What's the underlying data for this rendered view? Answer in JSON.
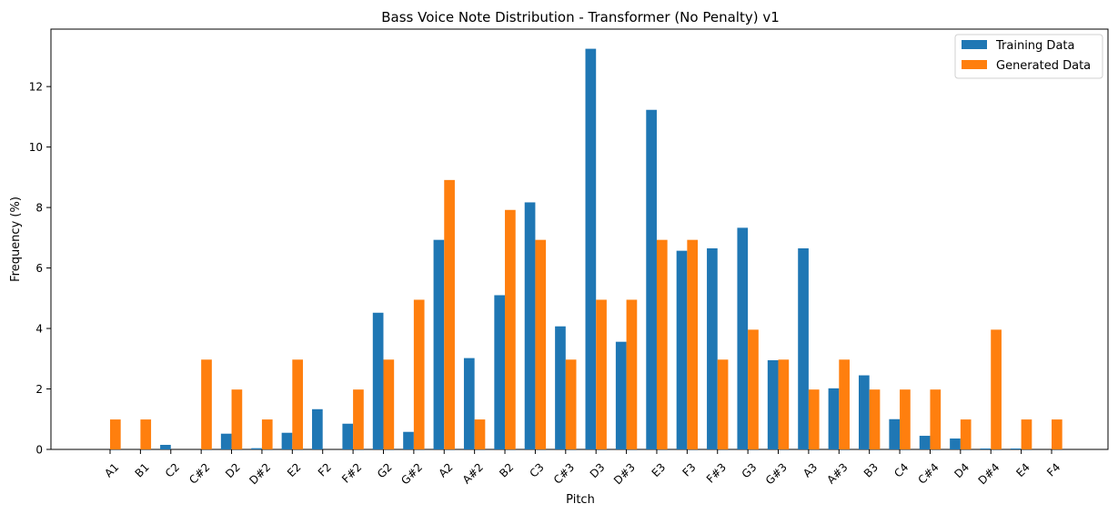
{
  "chart_data": {
    "type": "bar",
    "title": "Bass Voice Note Distribution - Transformer (No Penalty) v1",
    "xlabel": "Pitch",
    "ylabel": "Frequency (%)",
    "ylim": [
      0,
      13.9
    ],
    "yticks": [
      0,
      2,
      4,
      6,
      8,
      10,
      12
    ],
    "legend_position": "top-right",
    "categories": [
      "A1",
      "B1",
      "C2",
      "C#2",
      "D2",
      "D#2",
      "E2",
      "F2",
      "F#2",
      "G2",
      "G#2",
      "A2",
      "A#2",
      "B2",
      "C3",
      "C#3",
      "D3",
      "D#3",
      "E3",
      "F3",
      "F#3",
      "G3",
      "G#3",
      "A3",
      "A#3",
      "B3",
      "C4",
      "C#4",
      "D4",
      "D#4",
      "E4",
      "F4"
    ],
    "series": [
      {
        "name": "Training Data",
        "color": "#1f77b4",
        "values": [
          0,
          0,
          0.15,
          0,
          0.52,
          0.04,
          0.55,
          1.33,
          0.85,
          4.52,
          0.58,
          6.93,
          3.02,
          5.1,
          8.17,
          4.07,
          13.25,
          3.56,
          11.23,
          6.57,
          6.65,
          7.33,
          2.95,
          6.65,
          2.02,
          2.45,
          1.0,
          0.45,
          0.36,
          0.03,
          0.03,
          0
        ]
      },
      {
        "name": "Generated Data",
        "color": "#ff7f0e",
        "values": [
          0.99,
          0.99,
          0,
          2.97,
          1.98,
          0.99,
          2.97,
          0,
          1.98,
          2.97,
          4.95,
          8.91,
          0.99,
          7.92,
          6.93,
          2.97,
          4.95,
          4.95,
          6.93,
          6.93,
          2.97,
          3.96,
          2.97,
          1.98,
          2.97,
          1.98,
          1.98,
          1.98,
          0.99,
          3.96,
          0.99,
          0.99
        ]
      }
    ]
  }
}
